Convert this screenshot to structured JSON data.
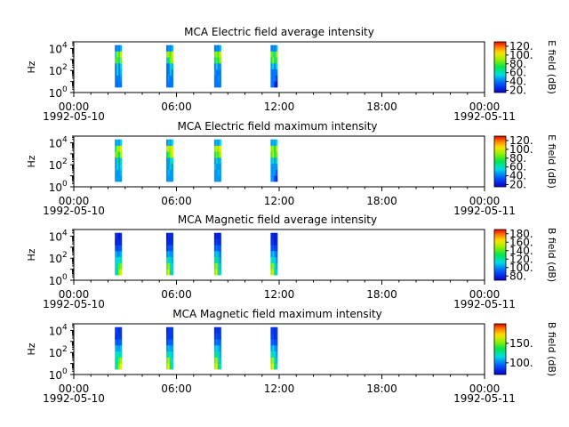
{
  "chart_data": [
    {
      "type": "heatmap",
      "title": "MCA  Electric field average intensity",
      "ylabel": "Hz",
      "colorbar_label": "E field (dB)",
      "colorbar_ticks": [
        "20.",
        "40.",
        "60.",
        "80.",
        "100.",
        "120."
      ],
      "colorbar_range": [
        15,
        130
      ],
      "yscale": "log",
      "ylim": [
        1,
        40000
      ],
      "y_ticks": [
        {
          "base": "10",
          "exp": "0"
        },
        {
          "base": "10",
          "exp": "2"
        },
        {
          "base": "10",
          "exp": "4"
        }
      ],
      "x_ticks": [
        "00:00",
        "06:00",
        "12:00",
        "18:00",
        "00:00"
      ],
      "x_date_labels": {
        "start": "1992-05-10",
        "end": "1992-05-11"
      },
      "xlim_hours": [
        0,
        24
      ],
      "passes": [
        {
          "start_h": 2.4,
          "end_h": 2.8,
          "fmin": 3,
          "fmax": 20000,
          "columns": [
            [
              40,
              40,
              40,
              40,
              80,
              60,
              40
            ],
            [
              38,
              40,
              55,
              60,
              80,
              90,
              45
            ],
            [
              40,
              40,
              40,
              40,
              60,
              80,
              40
            ],
            [
              40,
              45,
              50,
              60,
              90,
              100,
              50
            ]
          ]
        },
        {
          "start_h": 5.4,
          "end_h": 5.8,
          "fmin": 3,
          "fmax": 20000,
          "columns": [
            [
              40,
              40,
              40,
              40,
              60,
              90,
              40
            ],
            [
              40,
              45,
              40,
              40,
              70,
              90,
              45
            ],
            [
              40,
              40,
              60,
              60,
              85,
              80,
              40
            ],
            [
              40,
              40,
              40,
              50,
              95,
              100,
              50
            ]
          ]
        },
        {
          "start_h": 8.2,
          "end_h": 8.6,
          "fmin": 3,
          "fmax": 20000,
          "columns": [
            [
              40,
              40,
              45,
              40,
              65,
              85,
              40
            ],
            [
              40,
              40,
              40,
              55,
              80,
              90,
              45
            ],
            [
              40,
              45,
              40,
              40,
              75,
              80,
              40
            ],
            [
              40,
              40,
              40,
              45,
              90,
              100,
              50
            ]
          ]
        },
        {
          "start_h": 11.5,
          "end_h": 11.9,
          "fmin": 3,
          "fmax": 20000,
          "columns": [
            [
              40,
              40,
              40,
              45,
              70,
              85,
              40
            ],
            [
              40,
              40,
              40,
              55,
              90,
              80,
              45
            ],
            [
              25,
              40,
              40,
              40,
              65,
              60,
              40
            ],
            [
              20,
              30,
              40,
              55,
              80,
              90,
              50
            ]
          ]
        }
      ]
    },
    {
      "type": "heatmap",
      "title": "MCA  Electric field maximum intensity",
      "ylabel": "Hz",
      "colorbar_label": "E field (dB)",
      "colorbar_ticks": [
        "20.",
        "40.",
        "60.",
        "80.",
        "100.",
        "120."
      ],
      "colorbar_range": [
        15,
        130
      ],
      "yscale": "log",
      "ylim": [
        1,
        40000
      ],
      "y_ticks": [
        {
          "base": "10",
          "exp": "0"
        },
        {
          "base": "10",
          "exp": "2"
        },
        {
          "base": "10",
          "exp": "4"
        }
      ],
      "x_ticks": [
        "00:00",
        "06:00",
        "12:00",
        "18:00",
        "00:00"
      ],
      "x_date_labels": {
        "start": "1992-05-10",
        "end": "1992-05-11"
      },
      "xlim_hours": [
        0,
        24
      ],
      "passes": [
        {
          "start_h": 2.4,
          "end_h": 2.8,
          "fmin": 3,
          "fmax": 20000,
          "columns": [
            [
              45,
              45,
              45,
              45,
              85,
              70,
              45
            ],
            [
              45,
              45,
              60,
              65,
              85,
              95,
              50
            ],
            [
              45,
              45,
              45,
              45,
              70,
              90,
              45
            ],
            [
              45,
              50,
              55,
              65,
              95,
              105,
              55
            ]
          ]
        },
        {
          "start_h": 5.4,
          "end_h": 5.8,
          "fmin": 3,
          "fmax": 20000,
          "columns": [
            [
              45,
              45,
              45,
              45,
              70,
              95,
              45
            ],
            [
              45,
              50,
              45,
              45,
              80,
              95,
              50
            ],
            [
              45,
              45,
              65,
              65,
              90,
              90,
              45
            ],
            [
              45,
              45,
              45,
              55,
              100,
              105,
              55
            ]
          ]
        },
        {
          "start_h": 8.2,
          "end_h": 8.6,
          "fmin": 3,
          "fmax": 20000,
          "columns": [
            [
              45,
              45,
              50,
              45,
              75,
              90,
              45
            ],
            [
              45,
              45,
              45,
              60,
              85,
              95,
              50
            ],
            [
              45,
              50,
              45,
              45,
              80,
              90,
              45
            ],
            [
              45,
              45,
              45,
              50,
              95,
              105,
              55
            ]
          ]
        },
        {
          "start_h": 11.5,
          "end_h": 11.9,
          "fmin": 3,
          "fmax": 20000,
          "columns": [
            [
              45,
              45,
              45,
              50,
              80,
              90,
              45
            ],
            [
              45,
              45,
              45,
              60,
              95,
              90,
              50
            ],
            [
              30,
              45,
              45,
              45,
              75,
              70,
              45
            ],
            [
              25,
              35,
              45,
              60,
              85,
              95,
              55
            ]
          ]
        }
      ]
    },
    {
      "type": "heatmap",
      "title": "MCA  Magnetic field average intensity",
      "ylabel": "Hz",
      "colorbar_label": "B field (dB)",
      "colorbar_ticks": [
        "80.",
        "100.",
        "120.",
        "140.",
        "160.",
        "180."
      ],
      "colorbar_range": [
        70,
        190
      ],
      "yscale": "log",
      "ylim": [
        1,
        40000
      ],
      "y_ticks": [
        {
          "base": "10",
          "exp": "0"
        },
        {
          "base": "10",
          "exp": "2"
        },
        {
          "base": "10",
          "exp": "4"
        }
      ],
      "x_ticks": [
        "00:00",
        "06:00",
        "12:00",
        "18:00",
        "00:00"
      ],
      "x_date_labels": {
        "start": "1992-05-10",
        "end": "1992-05-11"
      },
      "xlim_hours": [
        0,
        24
      ],
      "passes": [
        {
          "start_h": 2.4,
          "end_h": 2.8,
          "fmin": 3,
          "fmax": 20000,
          "columns": [
            [
              110,
              110,
              110,
              105,
              90,
              75,
              80
            ],
            [
              130,
              125,
              115,
              100,
              85,
              80,
              80
            ],
            [
              150,
              140,
              115,
              100,
              90,
              80,
              75
            ],
            [
              160,
              145,
              120,
              105,
              90,
              80,
              80
            ]
          ]
        },
        {
          "start_h": 5.4,
          "end_h": 5.8,
          "fmin": 3,
          "fmax": 20000,
          "columns": [
            [
              150,
              140,
              115,
              100,
              85,
              80,
              75
            ],
            [
              160,
              150,
              120,
              105,
              90,
              80,
              80
            ],
            [
              120,
              115,
              110,
              100,
              90,
              80,
              80
            ],
            [
              110,
              110,
              105,
              100,
              90,
              80,
              80
            ]
          ]
        },
        {
          "start_h": 8.2,
          "end_h": 8.6,
          "fmin": 3,
          "fmax": 20000,
          "columns": [
            [
              150,
              140,
              120,
              105,
              90,
              80,
              75
            ],
            [
              160,
              150,
              125,
              110,
              95,
              85,
              80
            ],
            [
              120,
              115,
              110,
              105,
              90,
              80,
              75
            ],
            [
              110,
              105,
              100,
              95,
              90,
              80,
              80
            ]
          ]
        },
        {
          "start_h": 11.5,
          "end_h": 11.9,
          "fmin": 3,
          "fmax": 20000,
          "columns": [
            [
              150,
              140,
              115,
              100,
              90,
              80,
              80
            ],
            [
              160,
              150,
              120,
              110,
              90,
              85,
              80
            ],
            [
              125,
              120,
              110,
              100,
              85,
              75,
              75
            ],
            [
              110,
              105,
              100,
              95,
              85,
              80,
              80
            ]
          ]
        }
      ]
    },
    {
      "type": "heatmap",
      "title": "MCA  Magnetic field maximum intensity",
      "ylabel": "Hz",
      "colorbar_label": "B field (dB)",
      "colorbar_ticks": [
        "100.",
        "150."
      ],
      "colorbar_range": [
        70,
        200
      ],
      "yscale": "log",
      "ylim": [
        1,
        40000
      ],
      "y_ticks": [
        {
          "base": "10",
          "exp": "0"
        },
        {
          "base": "10",
          "exp": "2"
        },
        {
          "base": "10",
          "exp": "4"
        }
      ],
      "x_ticks": [
        "00:00",
        "06:00",
        "12:00",
        "18:00",
        "00:00"
      ],
      "x_date_labels": {
        "start": "1992-05-10",
        "end": "1992-05-11"
      },
      "xlim_hours": [
        0,
        24
      ],
      "passes": [
        {
          "start_h": 2.4,
          "end_h": 2.8,
          "fmin": 3,
          "fmax": 20000,
          "columns": [
            [
              120,
              120,
              115,
              110,
              95,
              80,
              85
            ],
            [
              140,
              130,
              120,
              105,
              90,
              85,
              85
            ],
            [
              160,
              150,
              120,
              105,
              95,
              85,
              80
            ],
            [
              170,
              155,
              125,
              110,
              95,
              85,
              85
            ]
          ]
        },
        {
          "start_h": 5.4,
          "end_h": 5.8,
          "fmin": 3,
          "fmax": 20000,
          "columns": [
            [
              160,
              150,
              120,
              105,
              90,
              85,
              80
            ],
            [
              170,
              160,
              125,
              110,
              95,
              85,
              85
            ],
            [
              130,
              120,
              115,
              105,
              95,
              85,
              85
            ],
            [
              120,
              115,
              110,
              105,
              95,
              85,
              85
            ]
          ]
        },
        {
          "start_h": 8.2,
          "end_h": 8.6,
          "fmin": 3,
          "fmax": 20000,
          "columns": [
            [
              160,
              150,
              125,
              110,
              95,
              85,
              80
            ],
            [
              170,
              160,
              130,
              115,
              100,
              90,
              85
            ],
            [
              130,
              120,
              115,
              110,
              95,
              85,
              80
            ],
            [
              120,
              110,
              105,
              100,
              95,
              85,
              85
            ]
          ]
        },
        {
          "start_h": 11.5,
          "end_h": 11.9,
          "fmin": 3,
          "fmax": 20000,
          "columns": [
            [
              160,
              150,
              120,
              105,
              95,
              85,
              85
            ],
            [
              170,
              160,
              125,
              115,
              95,
              90,
              85
            ],
            [
              135,
              125,
              115,
              105,
              90,
              80,
              80
            ],
            [
              120,
              110,
              105,
              100,
              90,
              85,
              85
            ]
          ]
        }
      ]
    }
  ]
}
